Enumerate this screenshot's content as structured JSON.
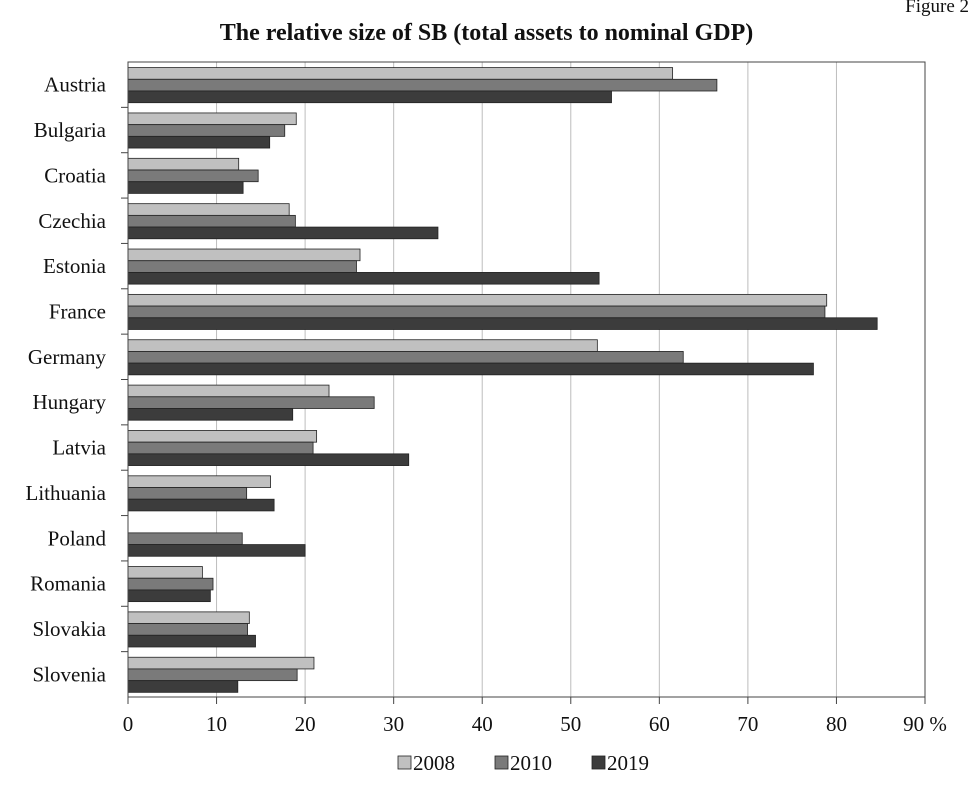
{
  "figure_label": "Figure 2",
  "chart_data": {
    "type": "bar",
    "orientation": "horizontal",
    "title": "The relative size of SB (total assets to nominal GDP)",
    "xlabel": "",
    "ylabel": "",
    "x_unit": "%",
    "xlim": [
      0,
      90
    ],
    "xticks": [
      0,
      10,
      20,
      30,
      40,
      50,
      60,
      70,
      80,
      90
    ],
    "grid": "vertical",
    "legend_position": "bottom",
    "categories": [
      "Austria",
      "Bulgaria",
      "Croatia",
      "Czechia",
      "Estonia",
      "France",
      "Germany",
      "Hungary",
      "Latvia",
      "Lithuania",
      "Poland",
      "Romania",
      "Slovakia",
      "Slovenia"
    ],
    "series": [
      {
        "name": "2008",
        "color": "#c0c0c0",
        "values": [
          61.5,
          19.0,
          12.5,
          18.2,
          26.2,
          78.9,
          53.0,
          22.7,
          21.3,
          16.1,
          null,
          8.4,
          13.7,
          21.0
        ]
      },
      {
        "name": "2010",
        "color": "#7a7a7a",
        "values": [
          66.5,
          17.7,
          14.7,
          18.9,
          25.8,
          78.7,
          62.7,
          27.8,
          20.9,
          13.4,
          12.9,
          9.6,
          13.5,
          19.1
        ]
      },
      {
        "name": "2019",
        "color": "#3c3c3c",
        "values": [
          54.6,
          16.0,
          13.0,
          35.0,
          53.2,
          84.6,
          77.4,
          18.6,
          31.7,
          16.5,
          20.0,
          9.3,
          14.4,
          12.4
        ]
      }
    ]
  }
}
